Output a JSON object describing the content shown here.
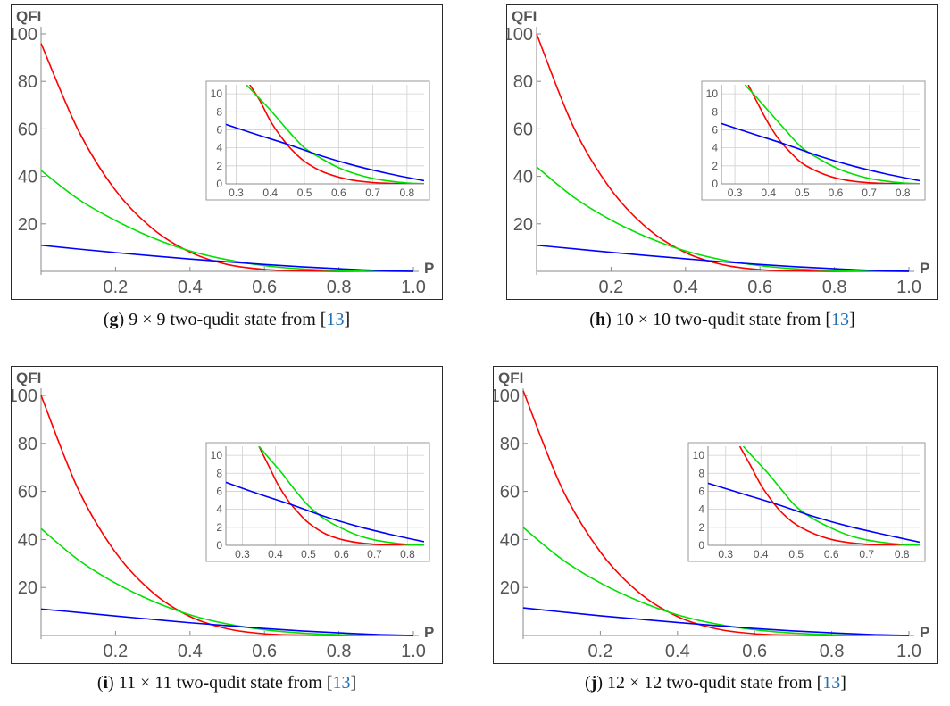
{
  "chart_data": [
    {
      "type": "line",
      "id": "g",
      "caption": {
        "letter": "g",
        "text": " 9 × 9 two-qudit state from ",
        "cite": "13"
      },
      "ylabel": "QFI",
      "xlabel": "P",
      "xlim": [
        0,
        1.0
      ],
      "ylim": [
        0,
        100
      ],
      "xticks": [
        0.2,
        0.4,
        0.6,
        0.8,
        1.0
      ],
      "yticks": [
        20,
        40,
        60,
        80,
        100
      ],
      "series": [
        {
          "color": "#ff0000",
          "x": [
            0,
            0.1,
            0.2,
            0.3,
            0.4,
            0.5,
            0.6,
            0.7,
            0.8,
            0.9,
            1.0
          ],
          "y": [
            96,
            59.4,
            34.1,
            17.9,
            8.1,
            2.9,
            0.8,
            0.2,
            0.02,
            0,
            0
          ]
        },
        {
          "color": "#00e000",
          "x": [
            0,
            0.1,
            0.2,
            0.3,
            0.4,
            0.5,
            0.6,
            0.7,
            0.8,
            0.9,
            1.0
          ],
          "y": [
            42.5,
            30.4,
            21.4,
            14.1,
            8.6,
            4.9,
            2.4,
            1.0,
            0.3,
            0.05,
            0
          ]
        },
        {
          "color": "#0000ff",
          "x": [
            0,
            0.1,
            0.2,
            0.3,
            0.4,
            0.5,
            0.6,
            0.7,
            0.8,
            0.9,
            1.0
          ],
          "y": [
            11,
            9.4,
            7.9,
            6.5,
            5.2,
            4.0,
            2.9,
            1.9,
            1.1,
            0.4,
            0
          ]
        }
      ],
      "inset": {
        "xlim": [
          0.27,
          0.85
        ],
        "ylim": [
          0,
          11
        ],
        "xticks": [
          0.3,
          0.4,
          0.5,
          0.6,
          0.7,
          0.8
        ],
        "yticks": [
          0,
          2,
          4,
          6,
          8,
          10
        ],
        "series": [
          {
            "color": "#ff0000",
            "x": [
              0.34,
              0.37,
              0.4,
              0.43,
              0.46,
              0.5,
              0.55,
              0.6,
              0.65,
              0.7,
              0.75,
              0.8,
              0.85
            ],
            "y": [
              11,
              9.2,
              7.0,
              5.3,
              3.9,
              2.5,
              1.4,
              0.75,
              0.35,
              0.15,
              0.06,
              0.02,
              0
            ]
          },
          {
            "color": "#00e000",
            "x": [
              0.33,
              0.36,
              0.4,
              0.45,
              0.5,
              0.55,
              0.6,
              0.65,
              0.7,
              0.75,
              0.8,
              0.85
            ],
            "y": [
              11,
              9.8,
              8.2,
              6.0,
              4.0,
              2.8,
              1.8,
              1.1,
              0.6,
              0.3,
              0.1,
              0.02
            ]
          },
          {
            "color": "#0000ff",
            "x": [
              0.27,
              0.35,
              0.45,
              0.55,
              0.65,
              0.75,
              0.85
            ],
            "y": [
              6.6,
              5.6,
              4.4,
              3.1,
              2.0,
              1.1,
              0.35
            ]
          }
        ]
      }
    },
    {
      "type": "line",
      "id": "h",
      "caption": {
        "letter": "h",
        "text": " 10 × 10 two-qudit state from ",
        "cite": "13"
      },
      "ylabel": "QFI",
      "xlabel": "P",
      "xlim": [
        0,
        1.0
      ],
      "ylim": [
        0,
        100
      ],
      "xticks": [
        0.2,
        0.4,
        0.6,
        0.8,
        1.0
      ],
      "yticks": [
        20,
        40,
        60,
        80,
        100
      ],
      "series": [
        {
          "color": "#ff0000",
          "x": [
            0,
            0.1,
            0.2,
            0.3,
            0.4,
            0.5,
            0.6,
            0.7,
            0.8,
            0.9,
            1.0
          ],
          "y": [
            100,
            60.5,
            34.4,
            17.8,
            7.9,
            2.8,
            0.7,
            0.15,
            0.02,
            0,
            0
          ]
        },
        {
          "color": "#00e000",
          "x": [
            0,
            0.1,
            0.2,
            0.3,
            0.4,
            0.5,
            0.6,
            0.7,
            0.8,
            0.9,
            1.0
          ],
          "y": [
            44,
            31.2,
            21.6,
            14.2,
            8.6,
            4.8,
            2.4,
            1.0,
            0.3,
            0.05,
            0
          ]
        },
        {
          "color": "#0000ff",
          "x": [
            0,
            0.1,
            0.2,
            0.3,
            0.4,
            0.5,
            0.6,
            0.7,
            0.8,
            0.9,
            1.0
          ],
          "y": [
            11,
            9.5,
            8.0,
            6.6,
            5.3,
            4.0,
            2.9,
            1.9,
            1.1,
            0.4,
            0
          ]
        }
      ],
      "inset": {
        "xlim": [
          0.26,
          0.85
        ],
        "ylim": [
          0,
          11
        ],
        "xticks": [
          0.3,
          0.4,
          0.5,
          0.6,
          0.7,
          0.8
        ],
        "yticks": [
          0,
          2,
          4,
          6,
          8,
          10
        ],
        "series": [
          {
            "color": "#ff0000",
            "x": [
              0.34,
              0.37,
              0.4,
              0.43,
              0.46,
              0.5,
              0.55,
              0.6,
              0.65,
              0.7,
              0.75,
              0.8,
              0.85
            ],
            "y": [
              11,
              8.8,
              6.7,
              5.0,
              3.7,
              2.3,
              1.3,
              0.65,
              0.3,
              0.12,
              0.05,
              0.01,
              0
            ]
          },
          {
            "color": "#00e000",
            "x": [
              0.33,
              0.36,
              0.4,
              0.45,
              0.5,
              0.55,
              0.6,
              0.65,
              0.7,
              0.75,
              0.8,
              0.85
            ],
            "y": [
              11,
              9.8,
              8.1,
              6.0,
              4.0,
              2.8,
              1.8,
              1.1,
              0.6,
              0.3,
              0.1,
              0.02
            ]
          },
          {
            "color": "#0000ff",
            "x": [
              0.26,
              0.35,
              0.45,
              0.55,
              0.65,
              0.75,
              0.85
            ],
            "y": [
              6.7,
              5.6,
              4.4,
              3.1,
              2.0,
              1.1,
              0.35
            ]
          }
        ]
      }
    },
    {
      "type": "line",
      "id": "i",
      "caption": {
        "letter": "i",
        "text": " 11 × 11 two-qudit state from ",
        "cite": "13"
      },
      "ylabel": "QFI",
      "xlabel": "P",
      "xlim": [
        0,
        1.0
      ],
      "ylim": [
        0,
        100
      ],
      "xticks": [
        0.2,
        0.4,
        0.6,
        0.8,
        1.0
      ],
      "yticks": [
        20,
        40,
        60,
        80,
        100
      ],
      "series": [
        {
          "color": "#ff0000",
          "x": [
            0,
            0.1,
            0.2,
            0.3,
            0.4,
            0.5,
            0.6,
            0.7,
            0.8,
            0.9,
            1.0
          ],
          "y": [
            100,
            60.8,
            34.6,
            17.9,
            7.9,
            2.8,
            0.7,
            0.15,
            0.02,
            0,
            0
          ]
        },
        {
          "color": "#00e000",
          "x": [
            0,
            0.1,
            0.2,
            0.3,
            0.4,
            0.5,
            0.6,
            0.7,
            0.8,
            0.9,
            1.0
          ],
          "y": [
            44.5,
            31.5,
            21.8,
            14.3,
            8.6,
            4.8,
            2.4,
            1.0,
            0.3,
            0.05,
            0
          ]
        },
        {
          "color": "#0000ff",
          "x": [
            0,
            0.1,
            0.2,
            0.3,
            0.4,
            0.5,
            0.6,
            0.7,
            0.8,
            0.9,
            1.0
          ],
          "y": [
            11,
            9.6,
            8.1,
            6.7,
            5.3,
            4.1,
            2.9,
            1.9,
            1.1,
            0.4,
            0
          ]
        }
      ],
      "inset": {
        "xlim": [
          0.25,
          0.85
        ],
        "ylim": [
          0,
          11
        ],
        "xticks": [
          0.3,
          0.4,
          0.5,
          0.6,
          0.7,
          0.8
        ],
        "yticks": [
          0,
          2,
          4,
          6,
          8,
          10
        ],
        "series": [
          {
            "color": "#ff0000",
            "x": [
              0.35,
              0.38,
              0.41,
              0.44,
              0.47,
              0.5,
              0.55,
              0.6,
              0.65,
              0.7,
              0.75,
              0.8,
              0.85
            ],
            "y": [
              11,
              8.8,
              6.6,
              4.9,
              3.6,
              2.5,
              1.3,
              0.65,
              0.3,
              0.12,
              0.05,
              0.01,
              0
            ]
          },
          {
            "color": "#00e000",
            "x": [
              0.35,
              0.38,
              0.42,
              0.46,
              0.5,
              0.55,
              0.6,
              0.65,
              0.7,
              0.75,
              0.8,
              0.85
            ],
            "y": [
              11,
              9.7,
              8.0,
              6.1,
              4.4,
              2.9,
              1.9,
              1.1,
              0.6,
              0.3,
              0.1,
              0.02
            ]
          },
          {
            "color": "#0000ff",
            "x": [
              0.25,
              0.35,
              0.45,
              0.55,
              0.65,
              0.75,
              0.85
            ],
            "y": [
              7.0,
              5.7,
              4.5,
              3.2,
              2.1,
              1.2,
              0.4
            ]
          }
        ]
      }
    },
    {
      "type": "line",
      "id": "j",
      "caption": {
        "letter": "j",
        "text": " 12 × 12 two-qudit state from ",
        "cite": "13"
      },
      "ylabel": "QFI",
      "xlabel": "P",
      "xlim": [
        0,
        1.0
      ],
      "ylim": [
        0,
        100
      ],
      "xticks": [
        0.2,
        0.4,
        0.6,
        0.8,
        1.0
      ],
      "yticks": [
        20,
        40,
        60,
        80,
        100
      ],
      "series": [
        {
          "color": "#ff0000",
          "x": [
            0,
            0.1,
            0.2,
            0.3,
            0.4,
            0.5,
            0.6,
            0.7,
            0.8,
            0.9,
            1.0
          ],
          "y": [
            102,
            61.5,
            34.8,
            17.9,
            7.9,
            2.8,
            0.7,
            0.15,
            0.02,
            0,
            0
          ]
        },
        {
          "color": "#00e000",
          "x": [
            0,
            0.1,
            0.2,
            0.3,
            0.4,
            0.5,
            0.6,
            0.7,
            0.8,
            0.9,
            1.0
          ],
          "y": [
            45,
            31.8,
            21.9,
            14.3,
            8.6,
            4.8,
            2.4,
            1.0,
            0.3,
            0.05,
            0
          ]
        },
        {
          "color": "#0000ff",
          "x": [
            0,
            0.1,
            0.2,
            0.3,
            0.4,
            0.5,
            0.6,
            0.7,
            0.8,
            0.9,
            1.0
          ],
          "y": [
            11.5,
            9.8,
            8.2,
            6.8,
            5.4,
            4.1,
            2.9,
            1.9,
            1.1,
            0.4,
            0
          ]
        }
      ],
      "inset": {
        "xlim": [
          0.25,
          0.85
        ],
        "ylim": [
          0,
          11
        ],
        "xticks": [
          0.3,
          0.4,
          0.5,
          0.6,
          0.7,
          0.8
        ],
        "yticks": [
          0,
          2,
          4,
          6,
          8,
          10
        ],
        "series": [
          {
            "color": "#ff0000",
            "x": [
              0.34,
              0.37,
              0.4,
              0.43,
              0.46,
              0.5,
              0.55,
              0.6,
              0.65,
              0.7,
              0.75,
              0.8,
              0.85
            ],
            "y": [
              11,
              8.9,
              6.7,
              5.0,
              3.6,
              2.3,
              1.3,
              0.65,
              0.3,
              0.12,
              0.05,
              0.01,
              0
            ]
          },
          {
            "color": "#00e000",
            "x": [
              0.35,
              0.38,
              0.42,
              0.46,
              0.5,
              0.55,
              0.6,
              0.65,
              0.7,
              0.75,
              0.8,
              0.85
            ],
            "y": [
              11,
              9.7,
              8.0,
              6.1,
              4.3,
              2.9,
              1.9,
              1.1,
              0.6,
              0.3,
              0.1,
              0.02
            ]
          },
          {
            "color": "#0000ff",
            "x": [
              0.25,
              0.35,
              0.45,
              0.55,
              0.65,
              0.75,
              0.85
            ],
            "y": [
              6.9,
              5.7,
              4.5,
              3.2,
              2.1,
              1.2,
              0.35
            ]
          }
        ]
      }
    }
  ]
}
